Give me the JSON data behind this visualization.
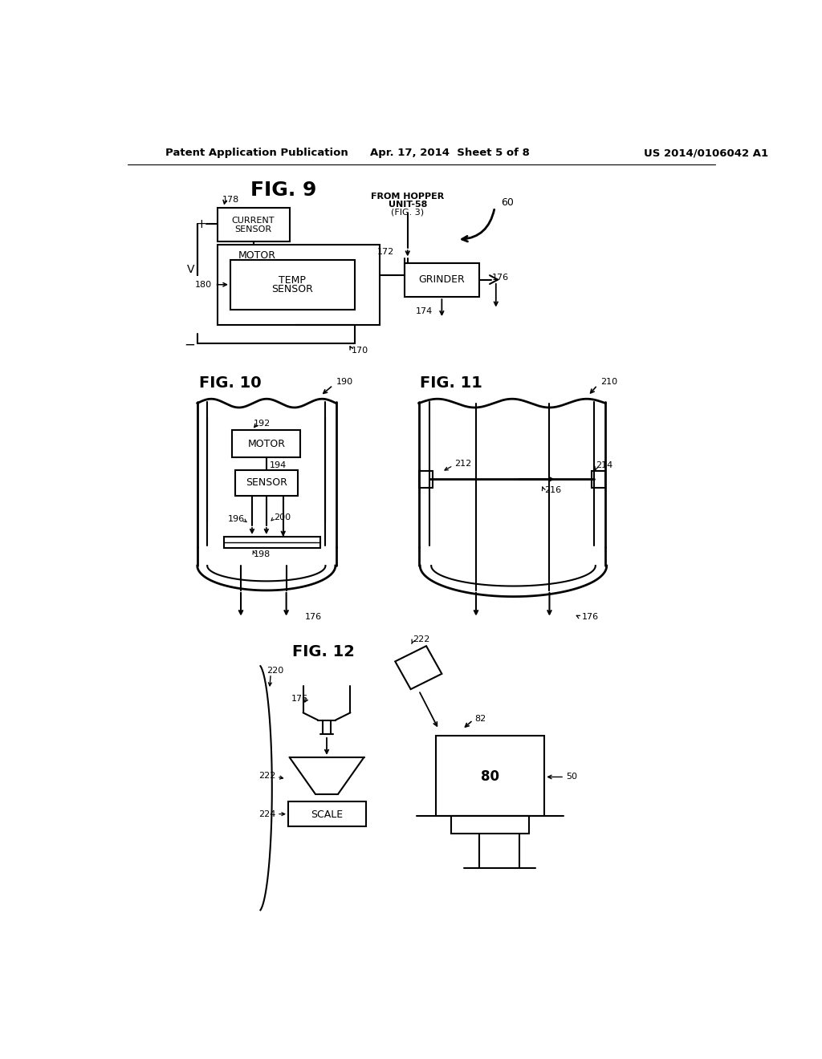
{
  "header_left": "Patent Application Publication",
  "header_center": "Apr. 17, 2014  Sheet 5 of 8",
  "header_right": "US 2014/0106042 A1",
  "bg_color": "#ffffff"
}
